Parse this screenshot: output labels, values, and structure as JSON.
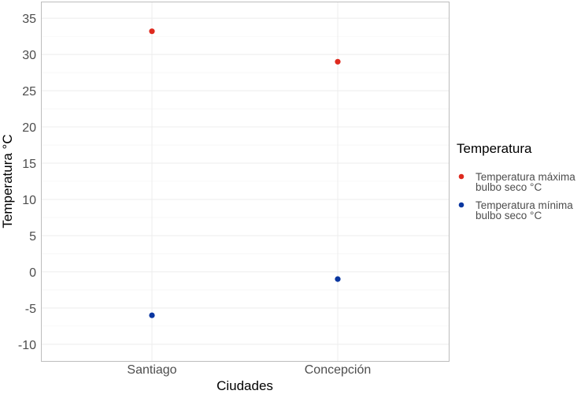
{
  "chart_data": {
    "type": "scatter",
    "title": "",
    "xlabel": "Ciudades",
    "ylabel": "Temperatura °C",
    "categories": [
      "Santiago",
      "Concepción"
    ],
    "ylim": [
      -12.3,
      37.3
    ],
    "yticks": [
      -10,
      -5,
      0,
      5,
      10,
      15,
      20,
      25,
      30,
      35
    ],
    "grid": true,
    "legend_position": "right",
    "legend_title": "Temperatura",
    "series": [
      {
        "name": "Temperatura máxima bulbo seco °C",
        "name_lines": [
          "Temperatura máxima",
          "bulbo seco °C"
        ],
        "color": "#DE2A1E",
        "values": [
          33.2,
          29.0
        ]
      },
      {
        "name": "Temperatura mínima bulbo seco °C",
        "name_lines": [
          "Temperatura mínima",
          "bulbo seco °C"
        ],
        "color": "#0A36A0",
        "values": [
          -6.0,
          -1.0
        ]
      }
    ]
  }
}
